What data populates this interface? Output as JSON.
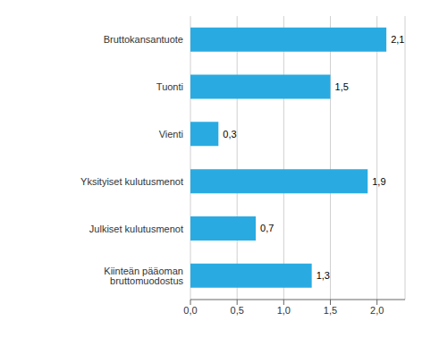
{
  "chart_data": {
    "type": "bar",
    "orientation": "horizontal",
    "categories": [
      "Kiinteän pääoman bruttomuodostus",
      "Julkiset kulutusmenot",
      "Yksityiset kulutusmenot",
      "Vienti",
      "Tuonti",
      "Bruttokansantuote"
    ],
    "values": [
      1.3,
      0.7,
      1.9,
      0.3,
      1.5,
      2.1
    ],
    "value_labels": [
      "1,3",
      "0,7",
      "1,9",
      "0,3",
      "1,5",
      "2,1"
    ],
    "data_labels": true,
    "color": "#29abe2",
    "xlim": [
      0,
      2.3
    ],
    "xticks": [
      {
        "value": 0.0,
        "label": "0,0"
      },
      {
        "value": 0.5,
        "label": "0,5"
      },
      {
        "value": 1.0,
        "label": "1,0"
      },
      {
        "value": 1.5,
        "label": "1,5"
      },
      {
        "value": 2.0,
        "label": "2,0"
      }
    ],
    "grid": true
  }
}
